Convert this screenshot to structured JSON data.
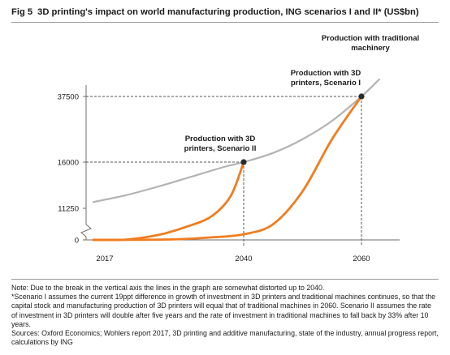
{
  "figure": {
    "number": "Fig 5",
    "title": "3D printing's impact on world manufacturing production, ING scenarios I and II* (US$bn)"
  },
  "chart_data": {
    "type": "line",
    "title": "3D printing's impact on world manufacturing production, ING scenarios I and II* (US$bn)",
    "xlabel": "",
    "ylabel": "",
    "x_ticks": [
      "2017",
      "2040",
      "2060"
    ],
    "y_ticks": [
      "0",
      "11250",
      "16000",
      "37500"
    ],
    "axis_break": true,
    "grid": false,
    "series": [
      {
        "name": "Production with traditional machinery",
        "color": "#b3b3b3",
        "x": [
          2017,
          2022,
          2027,
          2032,
          2037,
          2040,
          2045,
          2050,
          2055,
          2060,
          2063
        ],
        "y": [
          11900,
          12600,
          13500,
          14500,
          15500,
          16000,
          19000,
          23500,
          29500,
          37500,
          43000
        ]
      },
      {
        "name": "Production with 3D printers, Scenario II",
        "color": "#f07d1f",
        "x": [
          2017,
          2022,
          2027,
          2031,
          2035,
          2038,
          2040
        ],
        "y": [
          20,
          120,
          1800,
          4500,
          8300,
          12500,
          16000
        ]
      },
      {
        "name": "Production with 3D printers, Scenario I",
        "color": "#f07d1f",
        "x": [
          2017,
          2025,
          2030,
          2035,
          2040,
          2045,
          2050,
          2055,
          2060
        ],
        "y": [
          20,
          60,
          250,
          900,
          2000,
          5600,
          13000,
          23500,
          37500
        ]
      }
    ],
    "annotations": [
      {
        "text": "Production with traditional machinery",
        "lines": [
          "Production with traditional",
          "machinery"
        ],
        "x": 2060,
        "y": 37500
      },
      {
        "text": "Production with 3D printers, Scenario I",
        "lines": [
          "Production with 3D",
          "printers, Scenario I"
        ],
        "x": 2060,
        "y": 37500
      },
      {
        "text": "Production with 3D printers, Scenario II",
        "lines": [
          "Production with 3D",
          "printers, Scenario II"
        ],
        "x": 2040,
        "y": 16000
      }
    ],
    "markers": [
      {
        "x": 2040,
        "y": 16000
      },
      {
        "x": 2060,
        "y": 37500
      }
    ]
  },
  "notes": [
    "Note: Due to the break in the vertical axis the lines in the graph are somewhat distorted up to 2040.",
    "*Scenario I assumes the current 19ppt difference in growth of investment in 3D printers and traditional machines continues, so that the capital stock and manufacturing production of 3D printers will equal that of traditional machines in 2060. Scenario II assumes the rate of investment in 3D printers will double after five years and the rate of investment in traditional machines to fall back by 33% after 10 years.",
    "Sources: Oxford Economics; Wohlers report 2017, 3D printing and additive manufacturing, state of the industry, annual progress report, calculations by ING"
  ]
}
